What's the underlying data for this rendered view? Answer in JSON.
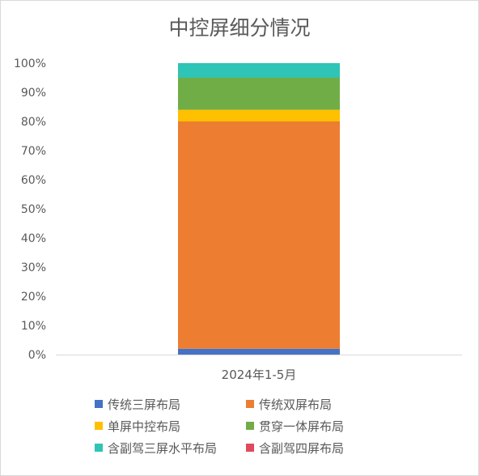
{
  "chart_data": {
    "type": "bar",
    "stacked": true,
    "percent": true,
    "title": "中控屏细分情况",
    "xlabel": "",
    "ylabel": "",
    "categories": [
      "2024年1-5月"
    ],
    "ylim": [
      0,
      100
    ],
    "yticks": [
      "0%",
      "10%",
      "20%",
      "30%",
      "40%",
      "50%",
      "60%",
      "70%",
      "80%",
      "90%",
      "100%"
    ],
    "legend_position": "bottom",
    "series": [
      {
        "name": "传统三屏布局",
        "color": "#4472C4",
        "values": [
          2
        ]
      },
      {
        "name": "传统双屏布局",
        "color": "#ED7D31",
        "values": [
          78
        ]
      },
      {
        "name": "单屏中控布局",
        "color": "#FFC000",
        "values": [
          4
        ]
      },
      {
        "name": "贯穿一体屏布局",
        "color": "#70AD47",
        "values": [
          11
        ]
      },
      {
        "name": "含副驾三屏水平布局",
        "color": "#2EC4B6",
        "values": [
          5
        ]
      },
      {
        "name": "含副驾四屏布局",
        "color": "#E04A5F",
        "values": [
          0
        ]
      }
    ]
  }
}
